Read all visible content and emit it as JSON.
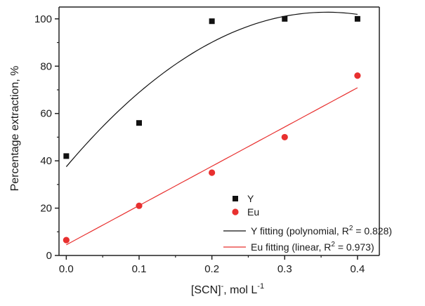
{
  "chart_data": {
    "type": "scatter",
    "xlabel": "[SCN]",
    "xlabel_sup": "-",
    "xlabel_suffix": ", mol L",
    "xlabel_suffix_sup": "-1",
    "ylabel": "Percentage extraction, %",
    "xlim": [
      -0.01,
      0.43
    ],
    "ylim": [
      0,
      105
    ],
    "x_ticks": [
      0.0,
      0.1,
      0.2,
      0.3,
      0.4
    ],
    "x_tick_labels": [
      "0.0",
      "0.1",
      "0.2",
      "0.3",
      "0.4"
    ],
    "y_ticks": [
      0,
      20,
      40,
      60,
      80,
      100
    ],
    "y_tick_labels": [
      "0",
      "20",
      "40",
      "60",
      "80",
      "100"
    ],
    "grid": false,
    "legend_position": "bottom-right",
    "series": [
      {
        "name": "Y",
        "marker": "square",
        "color": "#111111",
        "x": [
          0.0,
          0.1,
          0.2,
          0.3,
          0.4
        ],
        "y": [
          42,
          56,
          99,
          100,
          100
        ]
      },
      {
        "name": "Eu",
        "marker": "circle",
        "color": "#e8302f",
        "x": [
          0.0,
          0.1,
          0.2,
          0.3,
          0.4
        ],
        "y": [
          6.5,
          21,
          35,
          50,
          76
        ]
      }
    ],
    "fits": [
      {
        "label_prefix": "Y fitting (polynomial, R",
        "label_sup": "2",
        "label_suffix": " = 0.828)",
        "color": "#111111",
        "model": "polynomial",
        "coefficients": [
          37.5,
          365,
          -510
        ]
      },
      {
        "label_prefix": "Eu fitting (linear, R",
        "label_sup": "2",
        "label_suffix": " = 0.973)",
        "color": "#e8302f",
        "model": "linear",
        "coefficients": [
          4.5,
          166
        ]
      }
    ]
  }
}
